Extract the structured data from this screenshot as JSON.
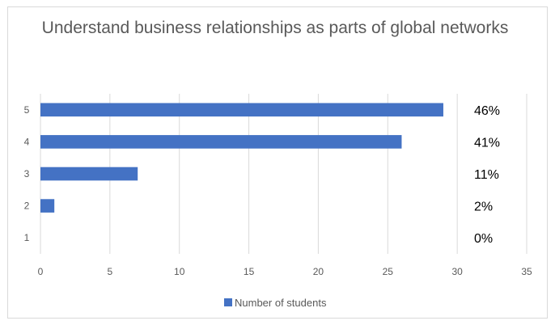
{
  "chart_data": {
    "type": "bar",
    "orientation": "horizontal",
    "title": "Understand business relationships as parts of global networks",
    "categories": [
      "1",
      "2",
      "3",
      "4",
      "5"
    ],
    "series": [
      {
        "name": "Number of students",
        "values": [
          0,
          1,
          7,
          26,
          29
        ]
      }
    ],
    "percent_labels": [
      "0%",
      "2%",
      "11%",
      "41%",
      "46%"
    ],
    "x_ticks": [
      "0",
      "5",
      "10",
      "15",
      "20",
      "25",
      "30",
      "35"
    ],
    "xlim": [
      0,
      35
    ],
    "grid": true,
    "legend_position": "bottom",
    "bar_color": "#4472c4",
    "grid_color": "#d9d9d9"
  }
}
